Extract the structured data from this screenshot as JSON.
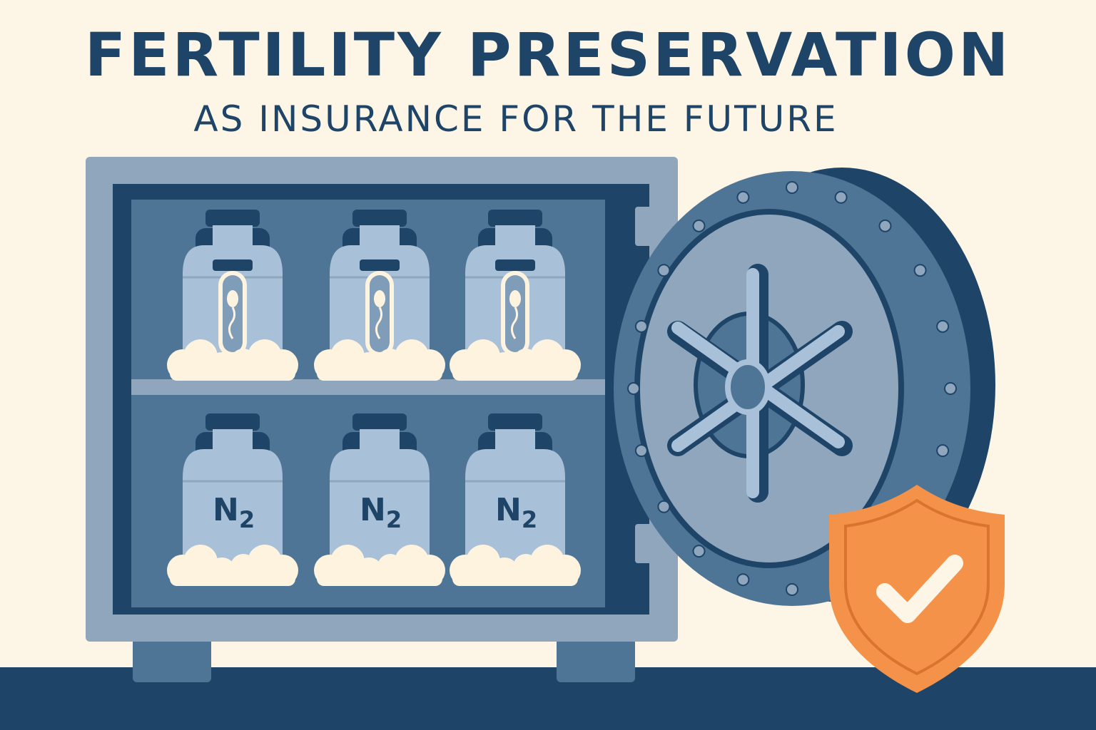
{
  "header": {
    "title": "FERTILITY PRESERVATION",
    "subtitle": "AS INSURANCE FOR THE FUTURE"
  },
  "tanks": {
    "top_row": [
      {
        "content": "sperm sample tube"
      },
      {
        "content": "sperm sample tube"
      },
      {
        "content": "sperm sample tube"
      }
    ],
    "bottom_row": [
      {
        "label": "N",
        "subscript": "2"
      },
      {
        "label": "N",
        "subscript": "2"
      },
      {
        "label": "N",
        "subscript": "2"
      }
    ]
  },
  "icons": [
    "vault-safe-icon",
    "vault-door-wheel-icon",
    "shield-check-icon",
    "cryo-tank-icon",
    "sperm-icon"
  ],
  "colors": {
    "background": "#fdf6e6",
    "navy": "#1e4468",
    "frame": "#8fa6bc",
    "interior": "#4f7596",
    "tank": "#a9c1d8",
    "vapor": "#fdf3df",
    "shield": "#f4924a"
  }
}
